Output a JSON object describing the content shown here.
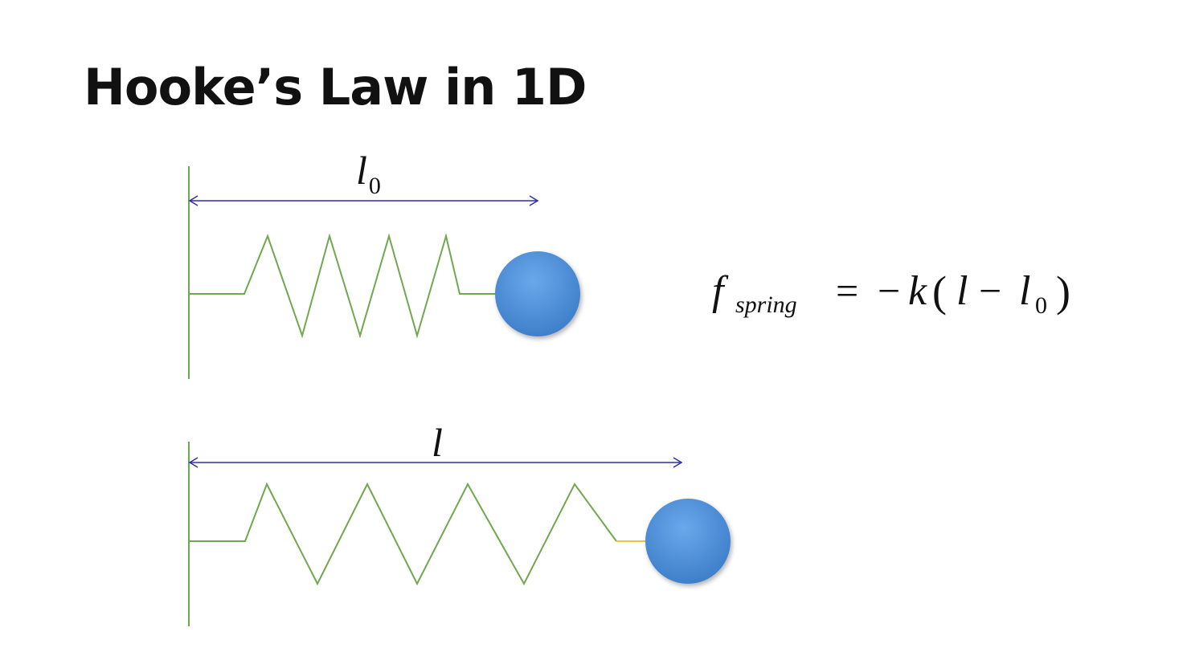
{
  "slide": {
    "title": "Hooke’s Law in 1D"
  },
  "colors": {
    "spring": "#70A84F",
    "wall": "#70A84F",
    "dimension_arrow": "#2E2EA8",
    "mass": "#4A8FD8",
    "short_link": "#F2C23C"
  },
  "diagrams": {
    "rest": {
      "length_symbol": "l",
      "length_subscript": "0"
    },
    "stretched": {
      "length_symbol": "l"
    }
  },
  "equation": {
    "f": "f",
    "f_subscript": "spring",
    "equals": "=",
    "minus": "−",
    "k": "k",
    "open_paren": "(",
    "l": "l",
    "minus2": "−",
    "l0_base": "l",
    "l0_subscript": "0",
    "close_paren": ")"
  }
}
